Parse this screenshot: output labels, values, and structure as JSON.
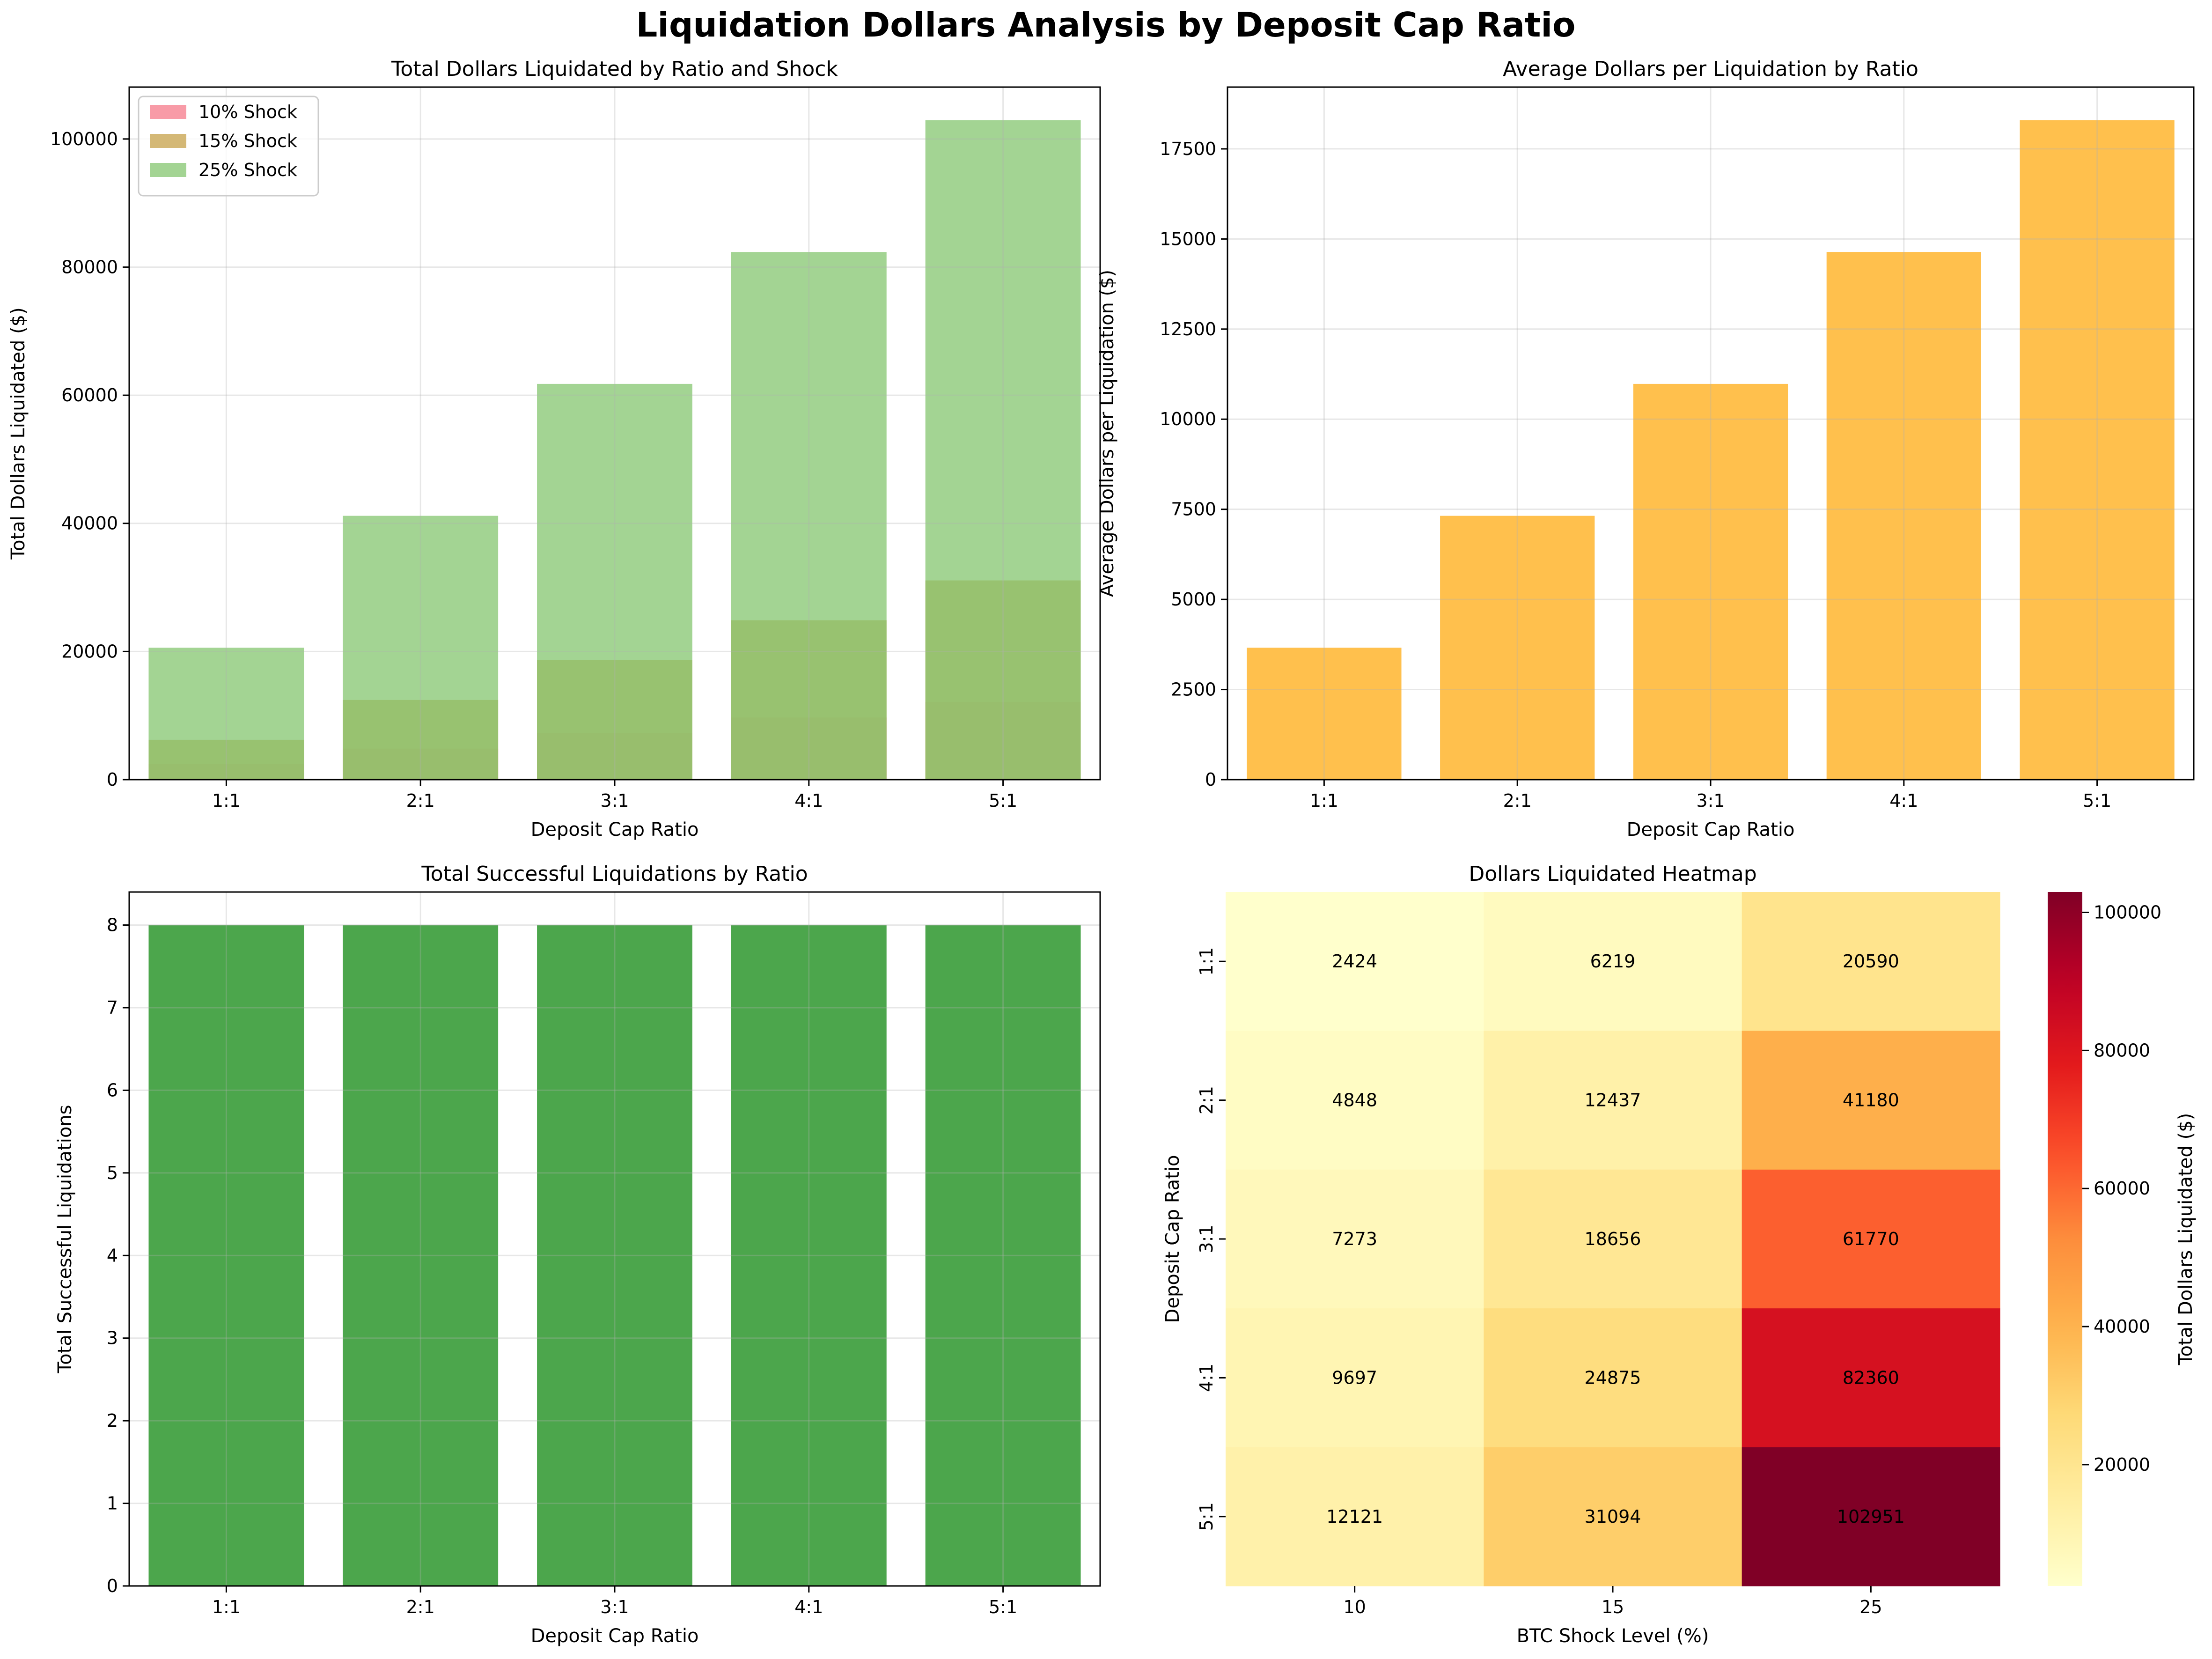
{
  "figure": {
    "title": "Liquidation Dollars Analysis by Deposit Cap Ratio"
  },
  "colors": {
    "shock_10": "#f7939f",
    "shock_15": "#cdab5e",
    "shock_25": "#84c66f",
    "average_bar": "#ffc04d",
    "success_bar": "#4ca64c",
    "heat_low": "#ffffcc",
    "heat_high": "#800026"
  },
  "chart_data": [
    {
      "id": "total_dollars",
      "type": "bar",
      "title": "Total Dollars Liquidated by Ratio and Shock",
      "xlabel": "Deposit Cap Ratio",
      "ylabel": "Total Dollars Liquidated ($)",
      "categories": [
        "1:1",
        "2:1",
        "3:1",
        "4:1",
        "5:1"
      ],
      "series": [
        {
          "name": "10% Shock",
          "values": [
            2424,
            4848,
            7273,
            9697,
            12121
          ]
        },
        {
          "name": "15% Shock",
          "values": [
            6219,
            12437,
            18656,
            24875,
            31094
          ]
        },
        {
          "name": "25% Shock",
          "values": [
            20590,
            41180,
            61770,
            82360,
            102951
          ]
        }
      ],
      "ylim": [
        0,
        108100
      ],
      "yticks": [
        0,
        20000,
        40000,
        60000,
        80000,
        100000
      ],
      "grid": true,
      "legend": "top-left",
      "bar_style": "overlaid, semi-transparent"
    },
    {
      "id": "avg_dollars",
      "type": "bar",
      "title": "Average Dollars per Liquidation by Ratio",
      "xlabel": "Deposit Cap Ratio",
      "ylabel": "Average Dollars per Liquidation ($)",
      "categories": [
        "1:1",
        "2:1",
        "3:1",
        "4:1",
        "5:1"
      ],
      "values": [
        3660,
        7319,
        10979,
        14640,
        18299
      ],
      "ylim": [
        0,
        19214
      ],
      "yticks": [
        0,
        2500,
        5000,
        7500,
        10000,
        12500,
        15000,
        17500
      ],
      "grid": true
    },
    {
      "id": "success_count",
      "type": "bar",
      "title": "Total Successful Liquidations by Ratio",
      "xlabel": "Deposit Cap Ratio",
      "ylabel": "Total Successful Liquidations",
      "categories": [
        "1:1",
        "2:1",
        "3:1",
        "4:1",
        "5:1"
      ],
      "values": [
        8,
        8,
        8,
        8,
        8
      ],
      "ylim": [
        0,
        8.4
      ],
      "yticks": [
        0,
        1,
        2,
        3,
        4,
        5,
        6,
        7,
        8
      ],
      "grid": true
    },
    {
      "id": "heatmap",
      "type": "heatmap",
      "title": "Dollars Liquidated Heatmap",
      "xlabel": "BTC Shock Level (%)",
      "ylabel": "Deposit Cap Ratio",
      "x": [
        "10",
        "15",
        "25"
      ],
      "y": [
        "1:1",
        "2:1",
        "3:1",
        "4:1",
        "5:1"
      ],
      "values": [
        [
          2424,
          6219,
          20590
        ],
        [
          4848,
          12437,
          41180
        ],
        [
          7273,
          18656,
          61770
        ],
        [
          9697,
          24875,
          82360
        ],
        [
          12121,
          31094,
          102951
        ]
      ],
      "colorbar": {
        "label": "Total Dollars Liquidated ($)",
        "range": [
          2424,
          102951
        ],
        "ticks": [
          20000,
          40000,
          60000,
          80000,
          100000
        ],
        "colormap": "YlOrRd"
      }
    }
  ]
}
